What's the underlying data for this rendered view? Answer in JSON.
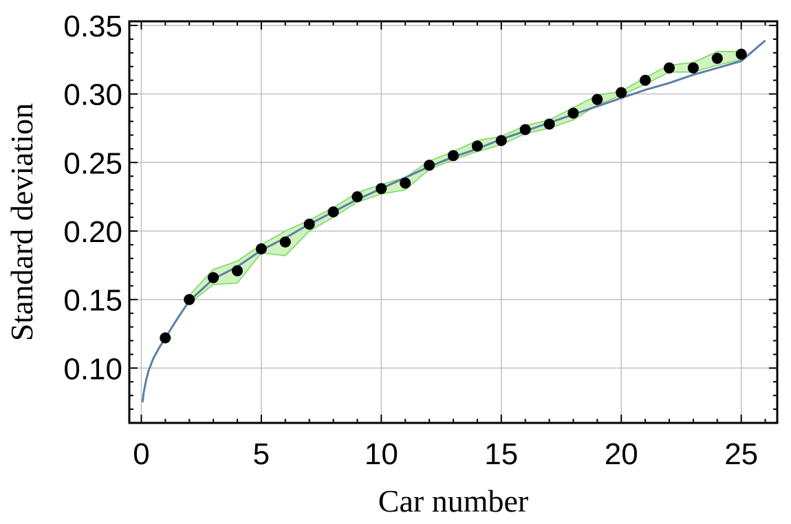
{
  "chart_data": {
    "type": "scatter",
    "xlabel": "Car number",
    "ylabel": "Standard deviation",
    "xlim": [
      -0.5,
      26.5
    ],
    "ylim": [
      0.06,
      0.353
    ],
    "xticks": [
      0,
      5,
      10,
      15,
      20,
      25
    ],
    "xtick_labels": [
      "0",
      "5",
      "10",
      "15",
      "20",
      "25"
    ],
    "yticks": [
      0.1,
      0.15,
      0.2,
      0.25,
      0.3,
      0.35
    ],
    "ytick_labels": [
      "0.10",
      "0.15",
      "0.20",
      "0.25",
      "0.30",
      "0.35"
    ],
    "grid": true,
    "points": {
      "x": [
        1,
        2,
        3,
        4,
        5,
        6,
        7,
        8,
        9,
        10,
        11,
        12,
        13,
        14,
        15,
        16,
        17,
        18,
        19,
        20,
        21,
        22,
        23,
        24,
        25
      ],
      "y": [
        0.122,
        0.15,
        0.166,
        0.171,
        0.187,
        0.192,
        0.205,
        0.214,
        0.225,
        0.231,
        0.235,
        0.248,
        0.255,
        0.262,
        0.266,
        0.274,
        0.278,
        0.286,
        0.296,
        0.301,
        0.31,
        0.319,
        0.319,
        0.326,
        0.329
      ]
    },
    "band": {
      "x": [
        2,
        3,
        4,
        5,
        6,
        7,
        8,
        9,
        10,
        11,
        12,
        13,
        14,
        15,
        16,
        17,
        18,
        19,
        20,
        21,
        22,
        23,
        24,
        25
      ],
      "upper": [
        0.153,
        0.172,
        0.178,
        0.19,
        0.2,
        0.208,
        0.217,
        0.228,
        0.234,
        0.239,
        0.251,
        0.258,
        0.266,
        0.269,
        0.277,
        0.281,
        0.29,
        0.299,
        0.302,
        0.312,
        0.321,
        0.323,
        0.331,
        0.331
      ],
      "lower": [
        0.147,
        0.161,
        0.162,
        0.184,
        0.182,
        0.2,
        0.21,
        0.221,
        0.227,
        0.23,
        0.245,
        0.252,
        0.258,
        0.263,
        0.271,
        0.275,
        0.281,
        0.292,
        0.299,
        0.307,
        0.316,
        0.316,
        0.321,
        0.325
      ]
    },
    "fit_curve": {
      "x": [
        0.05,
        0.1,
        0.2,
        0.3,
        0.5,
        0.75,
        1,
        1.5,
        2,
        3,
        4,
        5,
        6,
        7,
        8,
        9,
        10,
        11,
        12,
        13,
        14,
        15,
        16,
        17,
        18,
        19,
        20,
        21,
        22,
        23,
        24,
        25,
        26
      ],
      "y": [
        0.075,
        0.082,
        0.091,
        0.098,
        0.107,
        0.115,
        0.122,
        0.136,
        0.149,
        0.165,
        0.174,
        0.186,
        0.195,
        0.205,
        0.214,
        0.223,
        0.231,
        0.239,
        0.247,
        0.254,
        0.26,
        0.267,
        0.273,
        0.279,
        0.285,
        0.291,
        0.297,
        0.303,
        0.308,
        0.314,
        0.319,
        0.324,
        0.339
      ]
    },
    "colors": {
      "points": "#000000",
      "fit_line": "#5e7fa6",
      "band_fill": "#c8f0b4",
      "band_edge": "#72d85a",
      "grid": "#c0c0c0",
      "axes": "#000000"
    }
  }
}
